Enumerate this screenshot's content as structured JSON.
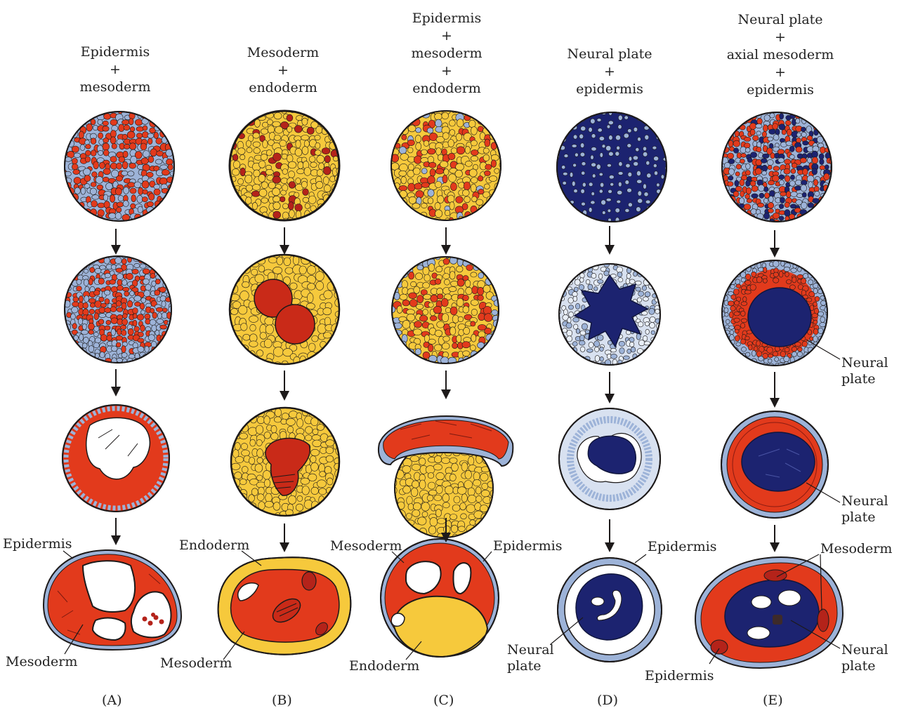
{
  "columns": [
    {
      "id": "A",
      "title_lines": [
        "Epidermis",
        "+",
        "mesoderm"
      ],
      "panel_label": "(A)"
    },
    {
      "id": "B",
      "title_lines": [
        "Mesoderm",
        "+",
        "endoderm"
      ],
      "panel_label": "(B)"
    },
    {
      "id": "C",
      "title_lines": [
        "Epidermis",
        "+",
        "mesoderm",
        "+",
        "endoderm"
      ],
      "panel_label": "(C)"
    },
    {
      "id": "D",
      "title_lines": [
        "Neural plate",
        "+",
        "epidermis"
      ],
      "panel_label": "(D)"
    },
    {
      "id": "E",
      "title_lines": [
        "Neural plate",
        "+",
        "axial mesoderm",
        "+",
        "epidermis"
      ],
      "panel_label": "(E)"
    }
  ],
  "labels": {
    "a_epidermis": "Epidermis",
    "a_mesoderm": "Mesoderm",
    "b_endoderm": "Endoderm",
    "b_mesoderm": "Mesoderm",
    "c_mesoderm": "Mesoderm",
    "c_epidermis": "Epidermis",
    "c_endoderm": "Endoderm",
    "d_epidermis": "Epidermis",
    "d_neural_plate": [
      "Neural",
      "plate"
    ],
    "e_neural_plate_row2": [
      "Neural",
      "plate"
    ],
    "e_neural_plate_row3": [
      "Neural",
      "plate"
    ],
    "e_mesoderm": "Mesoderm",
    "e_neural_plate_row4": [
      "Neural",
      "plate"
    ],
    "e_epidermis": "Epidermis"
  },
  "colors": {
    "epidermis": "#9db3d8",
    "mesoderm": "#e23a1c",
    "mesoderm_dark": "#b4231a",
    "endoderm": "#f6c93c",
    "neural_plate": "#1c2370",
    "outline": "#1d1a1a",
    "cavity": "#ffffff"
  }
}
